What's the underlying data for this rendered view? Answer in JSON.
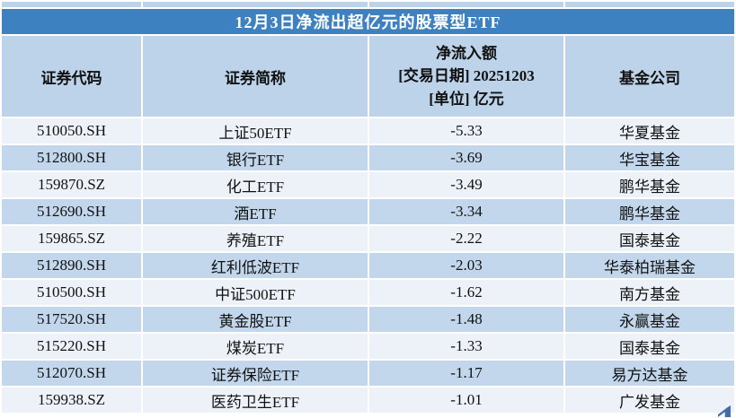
{
  "title": "12月3日净流出超亿元的股票型ETF",
  "header": {
    "code": "证券代码",
    "name": "证券简称",
    "flow_line1": "净流入额",
    "flow_line2": "[交易日期] 20251203",
    "flow_line3": "[单位] 亿元",
    "company": "基金公司"
  },
  "rows": [
    {
      "code": "510050.SH",
      "name": "上证50ETF",
      "net_flow": "-5.33",
      "company": "华夏基金"
    },
    {
      "code": "512800.SH",
      "name": "银行ETF",
      "net_flow": "-3.69",
      "company": "华宝基金"
    },
    {
      "code": "159870.SZ",
      "name": "化工ETF",
      "net_flow": "-3.49",
      "company": "鹏华基金"
    },
    {
      "code": "512690.SH",
      "name": "酒ETF",
      "net_flow": "-3.34",
      "company": "鹏华基金"
    },
    {
      "code": "159865.SZ",
      "name": "养殖ETF",
      "net_flow": "-2.22",
      "company": "国泰基金"
    },
    {
      "code": "512890.SH",
      "name": "红利低波ETF",
      "net_flow": "-2.03",
      "company": "华泰柏瑞基金"
    },
    {
      "code": "510500.SH",
      "name": "中证500ETF",
      "net_flow": "-1.62",
      "company": "南方基金"
    },
    {
      "code": "517520.SH",
      "name": "黄金股ETF",
      "net_flow": "-1.48",
      "company": "永赢基金"
    },
    {
      "code": "515220.SH",
      "name": "煤炭ETF",
      "net_flow": "-1.33",
      "company": "国泰基金"
    },
    {
      "code": "512070.SH",
      "name": "证券保险ETF",
      "net_flow": "-1.17",
      "company": "易方达基金"
    },
    {
      "code": "159938.SZ",
      "name": "医药卫生ETF",
      "net_flow": "-1.01",
      "company": "广发基金"
    }
  ],
  "colors": {
    "title_bar": "#3e81c1",
    "header_bg": "#bcd3e9",
    "row_odd_bg": "#edf2f9",
    "row_even_bg": "#c2d7ec",
    "grid": "#ffffff",
    "title_text": "#ffffff",
    "text": "#111111",
    "corner": "#2d5d9e"
  },
  "chart_data": {
    "type": "table",
    "title": "12月3日净流出超亿元的股票型ETF",
    "columns": [
      "证券代码",
      "证券简称",
      "净流入额 [交易日期] 20251203 [单位] 亿元",
      "基金公司"
    ],
    "series": [
      {
        "name": "净流入额(亿元)",
        "values": [
          -5.33,
          -3.69,
          -3.49,
          -3.34,
          -2.22,
          -2.03,
          -1.62,
          -1.48,
          -1.33,
          -1.17,
          -1.01
        ]
      }
    ],
    "categories": [
      "上证50ETF",
      "银行ETF",
      "化工ETF",
      "酒ETF",
      "养殖ETF",
      "红利低波ETF",
      "中证500ETF",
      "黄金股ETF",
      "煤炭ETF",
      "证券保险ETF",
      "医药卫生ETF"
    ]
  }
}
